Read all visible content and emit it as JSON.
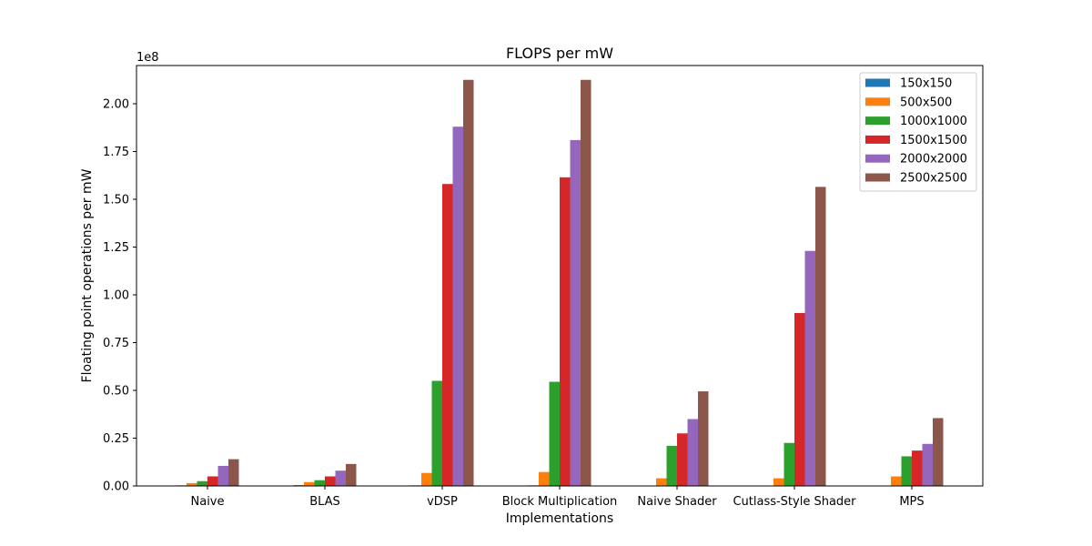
{
  "chart_data": {
    "type": "bar",
    "title": "FLOPS per mW",
    "xlabel": "Implementations",
    "ylabel": "Floating point operations per mW",
    "y_offset_label": "1e8",
    "ylim": [
      0,
      2.2
    ],
    "yticks": [
      0.0,
      0.25,
      0.5,
      0.75,
      1.0,
      1.25,
      1.5,
      1.75,
      2.0
    ],
    "ytick_labels": [
      "0.00",
      "0.25",
      "0.50",
      "0.75",
      "1.00",
      "1.25",
      "1.50",
      "1.75",
      "2.00"
    ],
    "legend_position": "top-right",
    "grid": false,
    "categories": [
      "Naive",
      "BLAS",
      "vDSP",
      "Block Multiplication",
      "Naive Shader",
      "Cutlass-Style Shader",
      "MPS"
    ],
    "series": [
      {
        "name": "150x150",
        "color": "#1f77b4",
        "values": [
          0.003,
          0.004,
          0.003,
          0.003,
          0.0,
          0.0,
          0.0
        ]
      },
      {
        "name": "500x500",
        "color": "#ff7f0e",
        "values": [
          0.015,
          0.02,
          0.068,
          0.073,
          0.04,
          0.04,
          0.05
        ]
      },
      {
        "name": "1000x1000",
        "color": "#2ca02c",
        "values": [
          0.025,
          0.03,
          0.55,
          0.545,
          0.21,
          0.225,
          0.155
        ]
      },
      {
        "name": "1500x1500",
        "color": "#d62728",
        "values": [
          0.05,
          0.05,
          1.58,
          1.615,
          0.275,
          0.905,
          0.185
        ]
      },
      {
        "name": "2000x2000",
        "color": "#9467bd",
        "values": [
          0.105,
          0.08,
          1.88,
          1.81,
          0.35,
          1.23,
          0.22
        ]
      },
      {
        "name": "2500x2500",
        "color": "#8c564b",
        "values": [
          0.14,
          0.115,
          2.125,
          2.125,
          0.495,
          1.565,
          0.355
        ]
      }
    ]
  }
}
